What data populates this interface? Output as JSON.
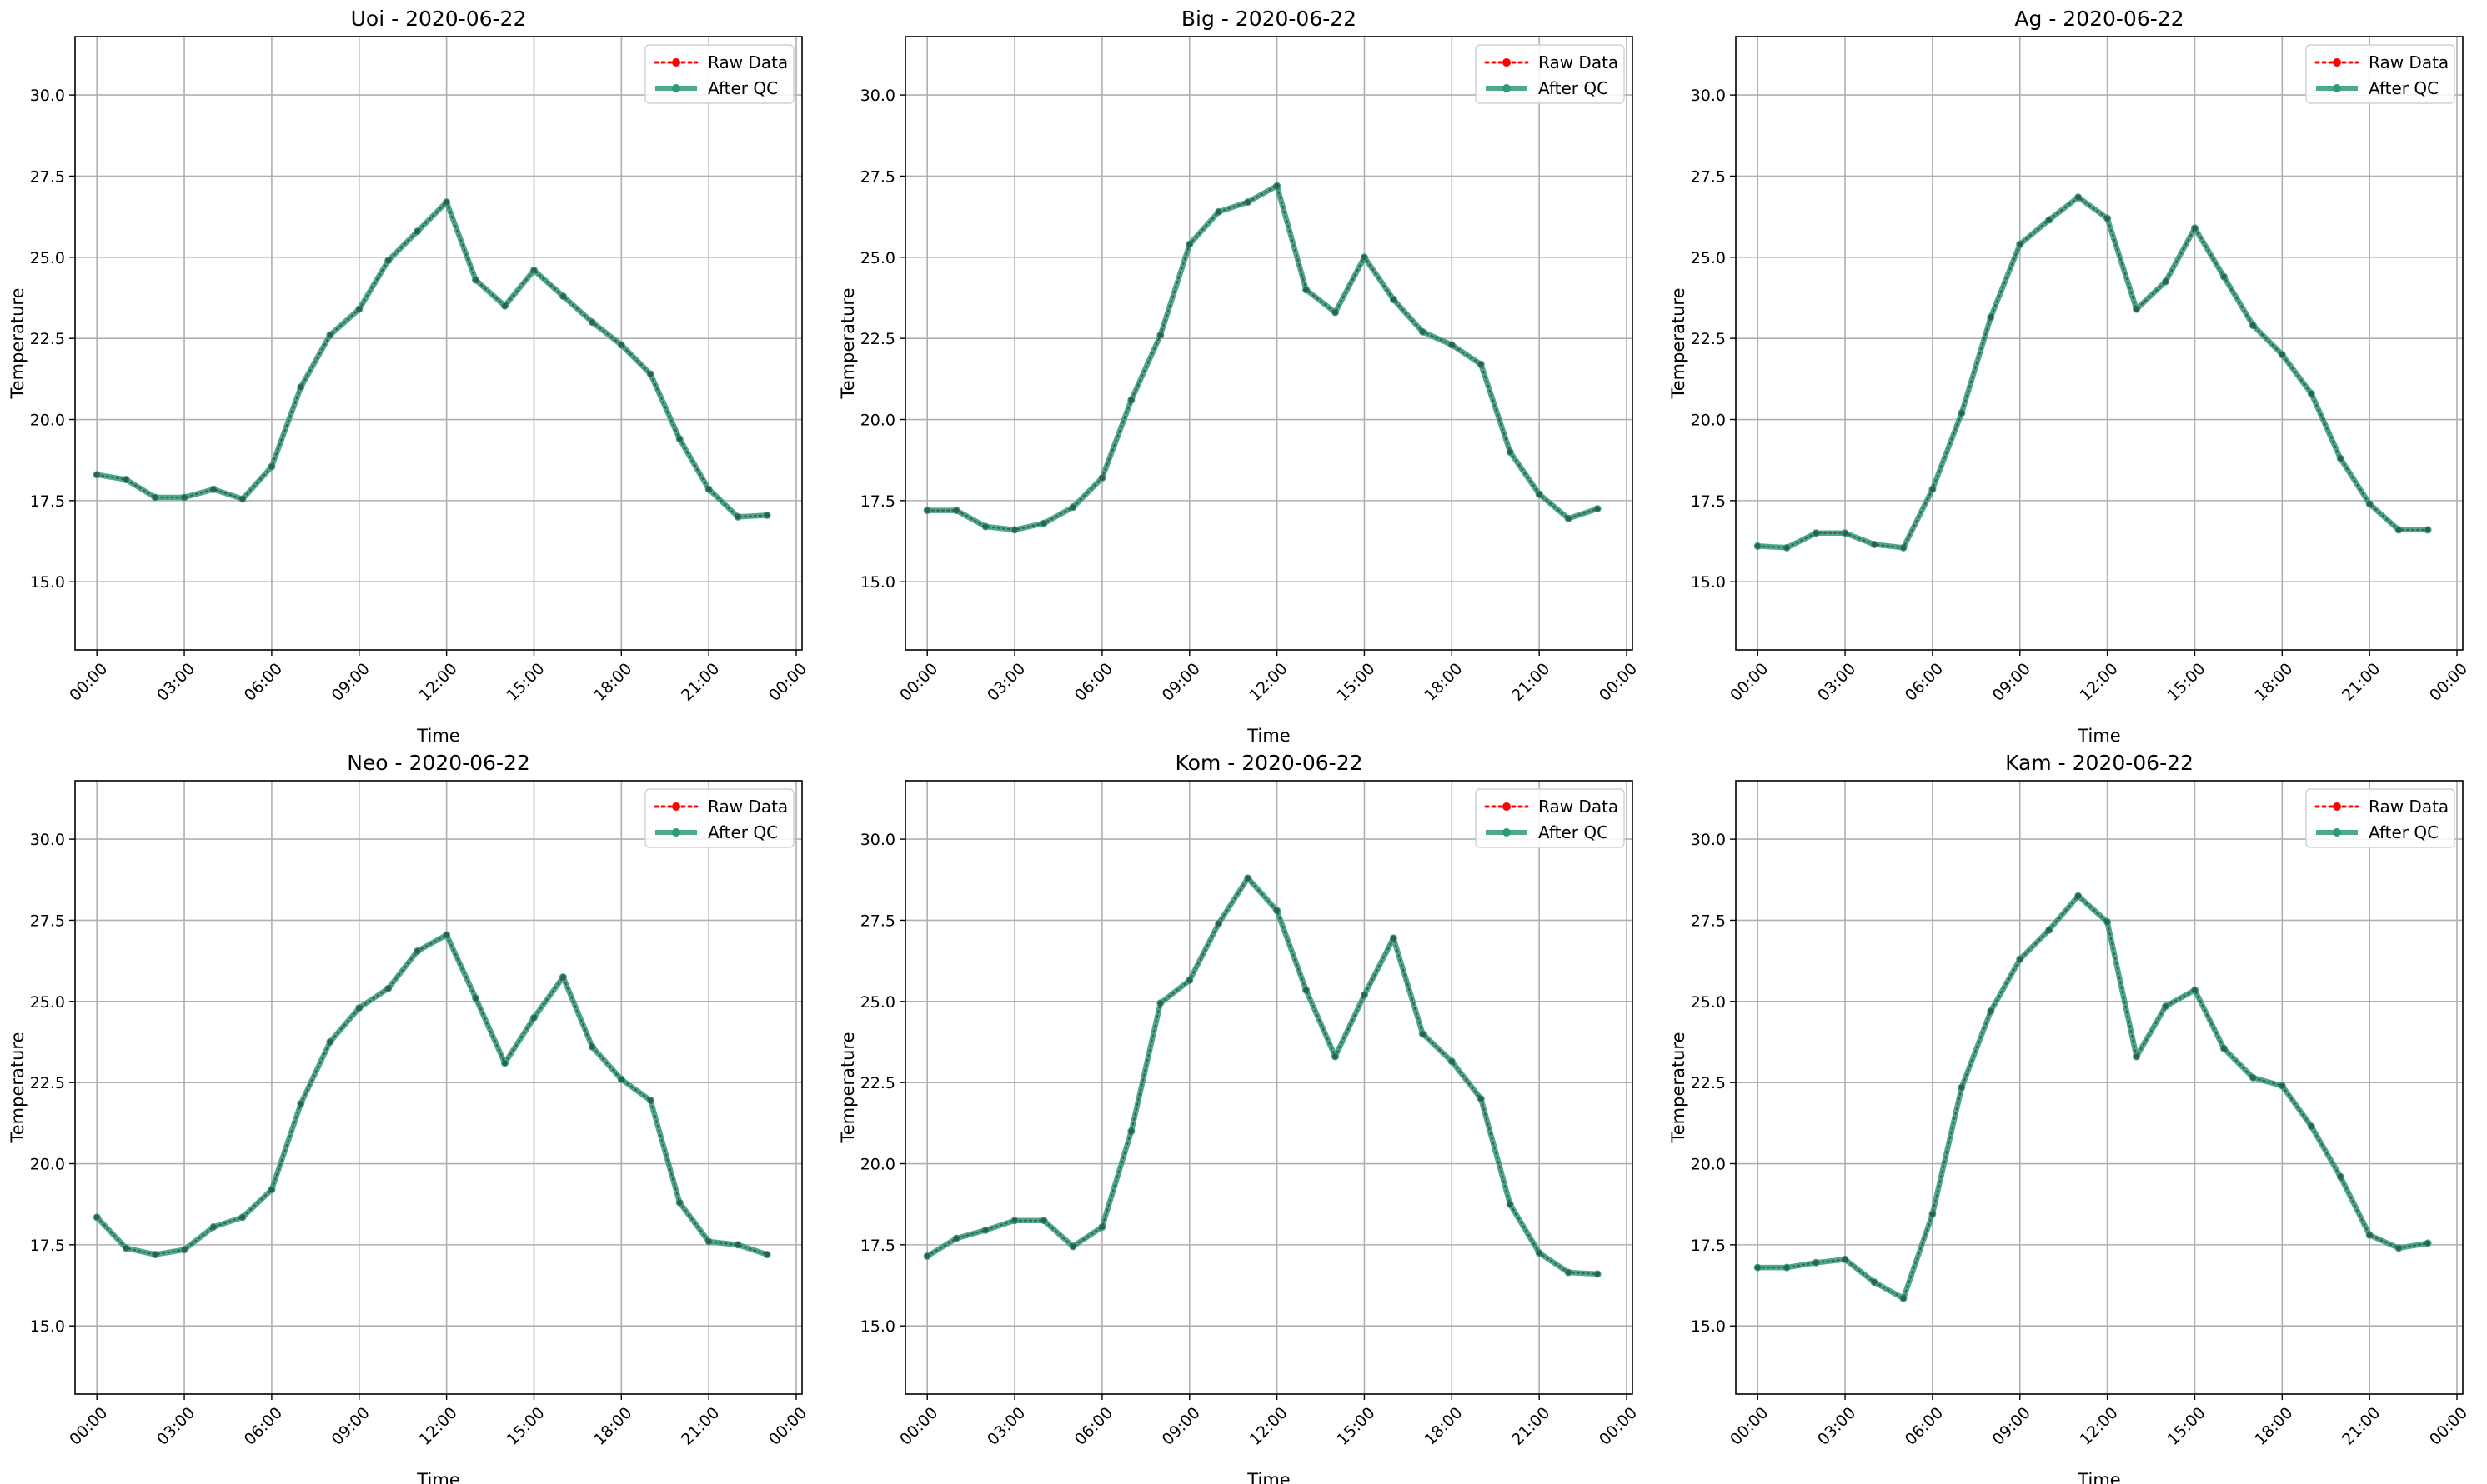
{
  "figure": {
    "panel_rows": 2,
    "panel_cols": 3
  },
  "chart_data": [
    {
      "type": "line",
      "title": "Uoi - 2020-06-22",
      "xlabel": "Time",
      "ylabel": "Temperature",
      "x": [
        "00:00",
        "01:00",
        "02:00",
        "03:00",
        "04:00",
        "05:00",
        "06:00",
        "07:00",
        "08:00",
        "09:00",
        "10:00",
        "11:00",
        "12:00",
        "13:00",
        "14:00",
        "15:00",
        "16:00",
        "17:00",
        "18:00",
        "19:00",
        "20:00",
        "21:00",
        "22:00",
        "23:00"
      ],
      "xticks": [
        "00:00",
        "03:00",
        "06:00",
        "09:00",
        "12:00",
        "15:00",
        "18:00",
        "21:00",
        "00:00"
      ],
      "yticks": [
        "15.0",
        "17.5",
        "20.0",
        "22.5",
        "25.0",
        "27.5",
        "30.0"
      ],
      "ylim": [
        12.9,
        31.8
      ],
      "grid": true,
      "legend_position": "top-right",
      "series": [
        {
          "name": "Raw Data",
          "color": "#ff0000",
          "style": "dotted",
          "values": [
            18.3,
            18.15,
            17.6,
            17.6,
            17.85,
            17.55,
            18.55,
            21.0,
            22.6,
            23.4,
            24.9,
            25.8,
            26.7,
            24.3,
            23.5,
            24.6,
            23.8,
            23.0,
            22.3,
            21.4,
            19.4,
            17.85,
            17.0,
            17.05
          ]
        },
        {
          "name": "After QC",
          "color": "#2e9a78",
          "style": "solid",
          "values": [
            18.3,
            18.15,
            17.6,
            17.6,
            17.85,
            17.55,
            18.55,
            21.0,
            22.6,
            23.4,
            24.9,
            25.8,
            26.7,
            24.3,
            23.5,
            24.6,
            23.8,
            23.0,
            22.3,
            21.4,
            19.4,
            17.85,
            17.0,
            17.05
          ]
        }
      ]
    },
    {
      "type": "line",
      "title": "Big - 2020-06-22",
      "xlabel": "Time",
      "ylabel": "Temperature",
      "x": [
        "00:00",
        "01:00",
        "02:00",
        "03:00",
        "04:00",
        "05:00",
        "06:00",
        "07:00",
        "08:00",
        "09:00",
        "10:00",
        "11:00",
        "12:00",
        "13:00",
        "14:00",
        "15:00",
        "16:00",
        "17:00",
        "18:00",
        "19:00",
        "20:00",
        "21:00",
        "22:00",
        "23:00"
      ],
      "xticks": [
        "00:00",
        "03:00",
        "06:00",
        "09:00",
        "12:00",
        "15:00",
        "18:00",
        "21:00",
        "00:00"
      ],
      "yticks": [
        "15.0",
        "17.5",
        "20.0",
        "22.5",
        "25.0",
        "27.5",
        "30.0"
      ],
      "ylim": [
        12.9,
        31.8
      ],
      "grid": true,
      "legend_position": "top-right",
      "series": [
        {
          "name": "Raw Data",
          "color": "#ff0000",
          "style": "dotted",
          "values": [
            17.2,
            17.2,
            16.7,
            16.6,
            16.8,
            17.3,
            18.2,
            20.6,
            22.6,
            25.4,
            26.4,
            26.7,
            27.2,
            24.0,
            23.3,
            25.0,
            23.7,
            22.7,
            22.3,
            21.7,
            19.0,
            17.7,
            16.95,
            17.25
          ]
        },
        {
          "name": "After QC",
          "color": "#2e9a78",
          "style": "solid",
          "values": [
            17.2,
            17.2,
            16.7,
            16.6,
            16.8,
            17.3,
            18.2,
            20.6,
            22.6,
            25.4,
            26.4,
            26.7,
            27.2,
            24.0,
            23.3,
            25.0,
            23.7,
            22.7,
            22.3,
            21.7,
            19.0,
            17.7,
            16.95,
            17.25
          ]
        }
      ]
    },
    {
      "type": "line",
      "title": "Ag - 2020-06-22",
      "xlabel": "Time",
      "ylabel": "Temperature",
      "x": [
        "00:00",
        "01:00",
        "02:00",
        "03:00",
        "04:00",
        "05:00",
        "06:00",
        "07:00",
        "08:00",
        "09:00",
        "10:00",
        "11:00",
        "12:00",
        "13:00",
        "14:00",
        "15:00",
        "16:00",
        "17:00",
        "18:00",
        "19:00",
        "20:00",
        "21:00",
        "22:00",
        "23:00"
      ],
      "xticks": [
        "00:00",
        "03:00",
        "06:00",
        "09:00",
        "12:00",
        "15:00",
        "18:00",
        "21:00",
        "00:00"
      ],
      "yticks": [
        "15.0",
        "17.5",
        "20.0",
        "22.5",
        "25.0",
        "27.5",
        "30.0"
      ],
      "ylim": [
        12.9,
        31.8
      ],
      "grid": true,
      "legend_position": "top-right",
      "series": [
        {
          "name": "Raw Data",
          "color": "#ff0000",
          "style": "dotted",
          "values": [
            16.1,
            16.05,
            16.5,
            16.5,
            16.15,
            16.05,
            17.85,
            20.2,
            23.15,
            25.4,
            26.15,
            26.85,
            26.2,
            23.4,
            24.25,
            25.9,
            24.4,
            22.9,
            22.0,
            20.8,
            18.8,
            17.4,
            16.6,
            16.6
          ]
        },
        {
          "name": "After QC",
          "color": "#2e9a78",
          "style": "solid",
          "values": [
            16.1,
            16.05,
            16.5,
            16.5,
            16.15,
            16.05,
            17.85,
            20.2,
            23.15,
            25.4,
            26.15,
            26.85,
            26.2,
            23.4,
            24.25,
            25.9,
            24.4,
            22.9,
            22.0,
            20.8,
            18.8,
            17.4,
            16.6,
            16.6
          ]
        }
      ]
    },
    {
      "type": "line",
      "title": "Neo - 2020-06-22",
      "xlabel": "Time",
      "ylabel": "Temperature",
      "x": [
        "00:00",
        "01:00",
        "02:00",
        "03:00",
        "04:00",
        "05:00",
        "06:00",
        "07:00",
        "08:00",
        "09:00",
        "10:00",
        "11:00",
        "12:00",
        "13:00",
        "14:00",
        "15:00",
        "16:00",
        "17:00",
        "18:00",
        "19:00",
        "20:00",
        "21:00",
        "22:00",
        "23:00"
      ],
      "xticks": [
        "00:00",
        "03:00",
        "06:00",
        "09:00",
        "12:00",
        "15:00",
        "18:00",
        "21:00",
        "00:00"
      ],
      "yticks": [
        "15.0",
        "17.5",
        "20.0",
        "22.5",
        "25.0",
        "27.5",
        "30.0"
      ],
      "ylim": [
        12.9,
        31.8
      ],
      "grid": true,
      "legend_position": "top-right",
      "series": [
        {
          "name": "Raw Data",
          "color": "#ff0000",
          "style": "dotted",
          "values": [
            18.35,
            17.4,
            17.2,
            17.35,
            18.05,
            18.35,
            19.2,
            21.85,
            23.75,
            24.8,
            25.4,
            26.55,
            27.05,
            25.1,
            23.1,
            24.5,
            25.75,
            23.6,
            22.6,
            21.95,
            18.8,
            17.6,
            17.5,
            17.2
          ]
        },
        {
          "name": "After QC",
          "color": "#2e9a78",
          "style": "solid",
          "values": [
            18.35,
            17.4,
            17.2,
            17.35,
            18.05,
            18.35,
            19.2,
            21.85,
            23.75,
            24.8,
            25.4,
            26.55,
            27.05,
            25.1,
            23.1,
            24.5,
            25.75,
            23.6,
            22.6,
            21.95,
            18.8,
            17.6,
            17.5,
            17.2
          ]
        }
      ]
    },
    {
      "type": "line",
      "title": "Kom - 2020-06-22",
      "xlabel": "Time",
      "ylabel": "Temperature",
      "x": [
        "00:00",
        "01:00",
        "02:00",
        "03:00",
        "04:00",
        "05:00",
        "06:00",
        "07:00",
        "08:00",
        "09:00",
        "10:00",
        "11:00",
        "12:00",
        "13:00",
        "14:00",
        "15:00",
        "16:00",
        "17:00",
        "18:00",
        "19:00",
        "20:00",
        "21:00",
        "22:00",
        "23:00"
      ],
      "xticks": [
        "00:00",
        "03:00",
        "06:00",
        "09:00",
        "12:00",
        "15:00",
        "18:00",
        "21:00",
        "00:00"
      ],
      "yticks": [
        "15.0",
        "17.5",
        "20.0",
        "22.5",
        "25.0",
        "27.5",
        "30.0"
      ],
      "ylim": [
        12.9,
        31.8
      ],
      "grid": true,
      "legend_position": "top-right",
      "series": [
        {
          "name": "Raw Data",
          "color": "#ff0000",
          "style": "dotted",
          "values": [
            17.15,
            17.7,
            17.95,
            18.25,
            18.25,
            17.45,
            18.05,
            21.0,
            24.95,
            25.65,
            27.4,
            28.8,
            27.8,
            25.35,
            23.3,
            25.2,
            26.95,
            24.0,
            23.15,
            22.0,
            18.75,
            17.25,
            16.65,
            16.6
          ]
        },
        {
          "name": "After QC",
          "color": "#2e9a78",
          "style": "solid",
          "values": [
            17.15,
            17.7,
            17.95,
            18.25,
            18.25,
            17.45,
            18.05,
            21.0,
            24.95,
            25.65,
            27.4,
            28.8,
            27.8,
            25.35,
            23.3,
            25.2,
            26.95,
            24.0,
            23.15,
            22.0,
            18.75,
            17.25,
            16.65,
            16.6
          ]
        }
      ]
    },
    {
      "type": "line",
      "title": "Kam - 2020-06-22",
      "xlabel": "Time",
      "ylabel": "Temperature",
      "x": [
        "00:00",
        "01:00",
        "02:00",
        "03:00",
        "04:00",
        "05:00",
        "06:00",
        "07:00",
        "08:00",
        "09:00",
        "10:00",
        "11:00",
        "12:00",
        "13:00",
        "14:00",
        "15:00",
        "16:00",
        "17:00",
        "18:00",
        "19:00",
        "20:00",
        "21:00",
        "22:00",
        "23:00"
      ],
      "xticks": [
        "00:00",
        "03:00",
        "06:00",
        "09:00",
        "12:00",
        "15:00",
        "18:00",
        "21:00",
        "00:00"
      ],
      "yticks": [
        "15.0",
        "17.5",
        "20.0",
        "22.5",
        "25.0",
        "27.5",
        "30.0"
      ],
      "ylim": [
        12.9,
        31.8
      ],
      "grid": true,
      "legend_position": "top-right",
      "series": [
        {
          "name": "Raw Data",
          "color": "#ff0000",
          "style": "dotted",
          "values": [
            16.8,
            16.8,
            16.95,
            17.05,
            16.35,
            15.85,
            18.45,
            22.35,
            24.7,
            26.3,
            27.2,
            28.25,
            27.45,
            23.3,
            24.85,
            25.35,
            23.55,
            22.65,
            22.4,
            21.15,
            19.6,
            17.8,
            17.4,
            17.55
          ]
        },
        {
          "name": "After QC",
          "color": "#2e9a78",
          "style": "solid",
          "values": [
            16.8,
            16.8,
            16.95,
            17.05,
            16.35,
            15.85,
            18.45,
            22.35,
            24.7,
            26.3,
            27.2,
            28.25,
            27.45,
            23.3,
            24.85,
            25.35,
            23.55,
            22.65,
            22.4,
            21.15,
            19.6,
            17.8,
            17.4,
            17.55
          ]
        }
      ]
    }
  ]
}
